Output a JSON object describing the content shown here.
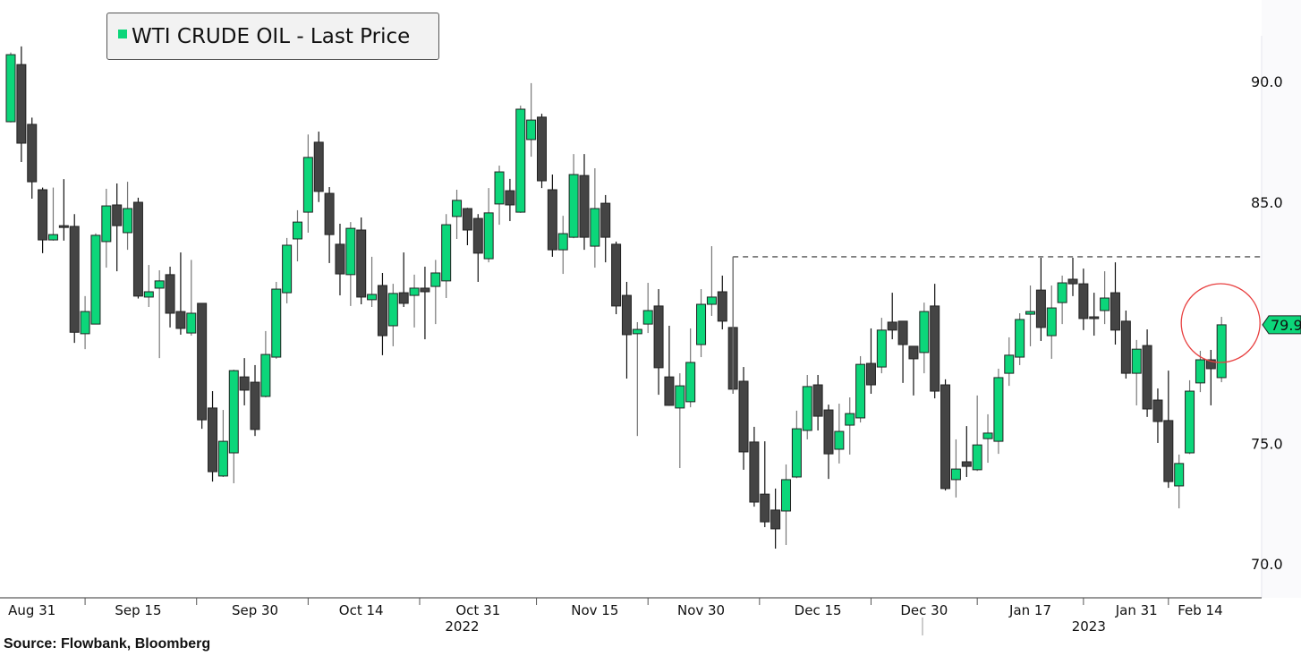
{
  "legend": {
    "label": "WTI CRUDE OIL - Last Price"
  },
  "source": "Source: Flowbank, Bloomberg",
  "colors": {
    "up": "#0cd67a",
    "down": "#444444",
    "circle": "#e84040",
    "outline": "#222222"
  },
  "chart_data": {
    "type": "candlestick",
    "title": "WTI CRUDE OIL - Last Price",
    "ylim": [
      67.5,
      92.5
    ],
    "y_ticks": [
      {
        "v": 90,
        "label": "90.0"
      },
      {
        "v": 85,
        "label": "85.0"
      },
      {
        "v": 75,
        "label": "75.0"
      },
      {
        "v": 70,
        "label": "70.0"
      }
    ],
    "x_labels": [
      {
        "i": 2,
        "label": "Aug 31"
      },
      {
        "i": 12,
        "label": "Sep 15"
      },
      {
        "i": 23,
        "label": "Sep 30"
      },
      {
        "i": 33,
        "label": "Oct 14"
      },
      {
        "i": 44,
        "label": "Oct 31"
      },
      {
        "i": 55,
        "label": "Nov 15"
      },
      {
        "i": 65,
        "label": "Nov 30"
      },
      {
        "i": 76,
        "label": "Dec 15"
      },
      {
        "i": 86,
        "label": "Dec 30"
      },
      {
        "i": 96,
        "label": "Jan 17"
      },
      {
        "i": 106,
        "label": "Jan 31"
      },
      {
        "i": 112,
        "label": "Feb 14"
      }
    ],
    "years": [
      {
        "i": 42.5,
        "label": "2022"
      },
      {
        "i": 101.5,
        "label": "2023"
      }
    ],
    "resistance_level": 82.73,
    "resistance_start_index": 68,
    "last_price_label": "79.9",
    "last_price": 79.91,
    "highlight_index": 114,
    "candles_ohlc": [
      [
        88.33,
        91.2,
        88.3,
        91.11
      ],
      [
        90.7,
        91.45,
        86.66,
        87.44
      ],
      [
        88.22,
        88.5,
        85.14,
        85.84
      ],
      [
        85.51,
        85.6,
        82.88,
        83.43
      ],
      [
        83.43,
        85.6,
        83.4,
        83.65
      ],
      [
        84.02,
        85.95,
        83.4,
        84.0
      ],
      [
        83.99,
        84.5,
        79.16,
        79.6
      ],
      [
        79.54,
        81.1,
        78.9,
        80.46
      ],
      [
        79.94,
        83.7,
        79.94,
        83.62
      ],
      [
        83.36,
        85.55,
        82.28,
        84.84
      ],
      [
        84.88,
        85.77,
        82.13,
        84.02
      ],
      [
        83.73,
        85.84,
        83.02,
        84.73
      ],
      [
        84.99,
        85.18,
        81.0,
        81.1
      ],
      [
        81.06,
        82.39,
        80.65,
        81.28
      ],
      [
        81.43,
        82.17,
        78.53,
        81.73
      ],
      [
        81.99,
        82.32,
        79.8,
        80.39
      ],
      [
        80.46,
        82.91,
        79.5,
        79.76
      ],
      [
        79.57,
        82.6,
        79.46,
        80.39
      ],
      [
        80.8,
        80.8,
        75.6,
        75.97
      ],
      [
        76.46,
        77.16,
        73.41,
        73.82
      ],
      [
        73.64,
        76.38,
        73.6,
        75.08
      ],
      [
        74.6,
        78.05,
        73.34,
        78.01
      ],
      [
        77.75,
        78.53,
        76.57,
        77.2
      ],
      [
        77.53,
        78.24,
        75.3,
        75.57
      ],
      [
        76.94,
        79.65,
        76.9,
        78.68
      ],
      [
        78.57,
        81.69,
        78.5,
        81.39
      ],
      [
        81.24,
        83.51,
        80.8,
        83.21
      ],
      [
        83.47,
        84.66,
        82.54,
        84.17
      ],
      [
        84.58,
        87.8,
        83.73,
        86.85
      ],
      [
        87.48,
        87.92,
        85.0,
        85.44
      ],
      [
        85.36,
        85.62,
        82.47,
        83.65
      ],
      [
        83.25,
        84.1,
        81.13,
        82.02
      ],
      [
        81.99,
        84.17,
        80.69,
        83.91
      ],
      [
        83.84,
        84.36,
        80.76,
        81.06
      ],
      [
        80.95,
        82.73,
        80.65,
        81.17
      ],
      [
        81.54,
        82.06,
        78.65,
        79.46
      ],
      [
        79.87,
        81.61,
        79.02,
        81.21
      ],
      [
        81.24,
        82.91,
        80.65,
        80.8
      ],
      [
        81.13,
        81.99,
        79.8,
        81.43
      ],
      [
        81.43,
        82.32,
        79.31,
        81.28
      ],
      [
        81.5,
        82.6,
        79.94,
        82.06
      ],
      [
        81.73,
        84.5,
        81.02,
        84.06
      ],
      [
        84.4,
        85.51,
        83.47,
        85.07
      ],
      [
        84.73,
        84.76,
        83.21,
        83.84
      ],
      [
        84.32,
        84.5,
        81.69,
        82.88
      ],
      [
        82.65,
        85.58,
        82.5,
        84.55
      ],
      [
        84.92,
        86.51,
        84.06,
        86.25
      ],
      [
        85.47,
        85.96,
        84.21,
        84.88
      ],
      [
        84.58,
        89.0,
        84.55,
        88.85
      ],
      [
        87.59,
        89.93,
        86.88,
        88.4
      ],
      [
        88.52,
        88.66,
        85.58,
        85.88
      ],
      [
        85.51,
        86.14,
        82.73,
        83.02
      ],
      [
        83.02,
        84.43,
        82.02,
        83.69
      ],
      [
        83.54,
        86.99,
        83.5,
        86.14
      ],
      [
        86.1,
        86.99,
        83.02,
        83.54
      ],
      [
        83.17,
        86.4,
        82.28,
        84.73
      ],
      [
        84.95,
        85.29,
        82.5,
        83.54
      ],
      [
        83.25,
        83.36,
        80.35,
        80.69
      ],
      [
        81.13,
        81.69,
        77.68,
        79.5
      ],
      [
        79.54,
        80.02,
        75.3,
        79.72
      ],
      [
        79.94,
        81.65,
        79.57,
        80.5
      ],
      [
        80.69,
        81.39,
        77.01,
        78.13
      ],
      [
        77.75,
        79.87,
        76.55,
        76.57
      ],
      [
        76.46,
        77.9,
        73.97,
        77.38
      ],
      [
        76.72,
        79.76,
        76.49,
        78.35
      ],
      [
        79.09,
        81.39,
        78.57,
        80.76
      ],
      [
        80.76,
        83.17,
        80.28,
        81.06
      ],
      [
        81.28,
        81.95,
        79.72,
        80.06
      ],
      [
        79.8,
        82.73,
        77.05,
        77.24
      ],
      [
        77.57,
        78.16,
        73.9,
        74.64
      ],
      [
        75.05,
        75.68,
        72.37,
        72.56
      ],
      [
        72.89,
        75.08,
        71.52,
        71.74
      ],
      [
        72.23,
        73.12,
        70.63,
        71.45
      ],
      [
        72.19,
        74.12,
        70.78,
        73.49
      ],
      [
        73.6,
        76.35,
        73.55,
        75.6
      ],
      [
        75.53,
        77.83,
        75.16,
        77.35
      ],
      [
        77.42,
        77.83,
        75.53,
        76.12
      ],
      [
        76.38,
        76.6,
        73.52,
        74.56
      ],
      [
        74.75,
        76.64,
        74.16,
        75.49
      ],
      [
        75.75,
        76.9,
        74.53,
        76.23
      ],
      [
        76.05,
        78.61,
        75.86,
        78.27
      ],
      [
        78.31,
        79.76,
        77.05,
        77.42
      ],
      [
        78.16,
        80.2,
        77.9,
        79.69
      ],
      [
        80.02,
        81.24,
        79.31,
        79.69
      ],
      [
        80.06,
        80.06,
        77.5,
        79.09
      ],
      [
        79.02,
        79.02,
        76.98,
        78.5
      ],
      [
        78.76,
        80.83,
        77.9,
        80.46
      ],
      [
        80.69,
        81.61,
        76.86,
        77.16
      ],
      [
        77.42,
        77.65,
        73.04,
        73.12
      ],
      [
        73.49,
        75.16,
        72.75,
        73.93
      ],
      [
        74.23,
        75.71,
        73.6,
        74.04
      ],
      [
        73.9,
        76.98,
        73.85,
        74.93
      ],
      [
        75.19,
        76.2,
        74.19,
        75.42
      ],
      [
        75.08,
        78.09,
        74.56,
        77.72
      ],
      [
        77.9,
        79.39,
        77.38,
        78.65
      ],
      [
        78.57,
        80.39,
        78.24,
        80.13
      ],
      [
        80.35,
        81.54,
        79.02,
        80.46
      ],
      [
        81.35,
        82.69,
        79.24,
        79.8
      ],
      [
        79.46,
        81.54,
        78.5,
        80.61
      ],
      [
        80.83,
        81.95,
        79.94,
        81.65
      ],
      [
        81.8,
        82.69,
        81.1,
        81.61
      ],
      [
        81.61,
        82.24,
        79.69,
        80.17
      ],
      [
        80.24,
        81.24,
        79.46,
        80.17
      ],
      [
        80.5,
        82.13,
        79.94,
        81.02
      ],
      [
        81.24,
        82.5,
        79.09,
        79.69
      ],
      [
        80.06,
        80.5,
        77.68,
        77.9
      ],
      [
        77.9,
        79.28,
        76.57,
        78.9
      ],
      [
        79.05,
        79.72,
        76.09,
        76.42
      ],
      [
        76.79,
        77.27,
        75.01,
        75.9
      ],
      [
        75.94,
        78.01,
        73.15,
        73.41
      ],
      [
        73.23,
        74.53,
        72.3,
        74.16
      ],
      [
        74.6,
        77.61,
        74.55,
        77.16
      ],
      [
        77.5,
        78.83,
        77.12,
        78.46
      ],
      [
        78.46,
        78.87,
        76.57,
        78.09
      ],
      [
        77.72,
        80.24,
        77.53,
        79.91
      ]
    ]
  }
}
